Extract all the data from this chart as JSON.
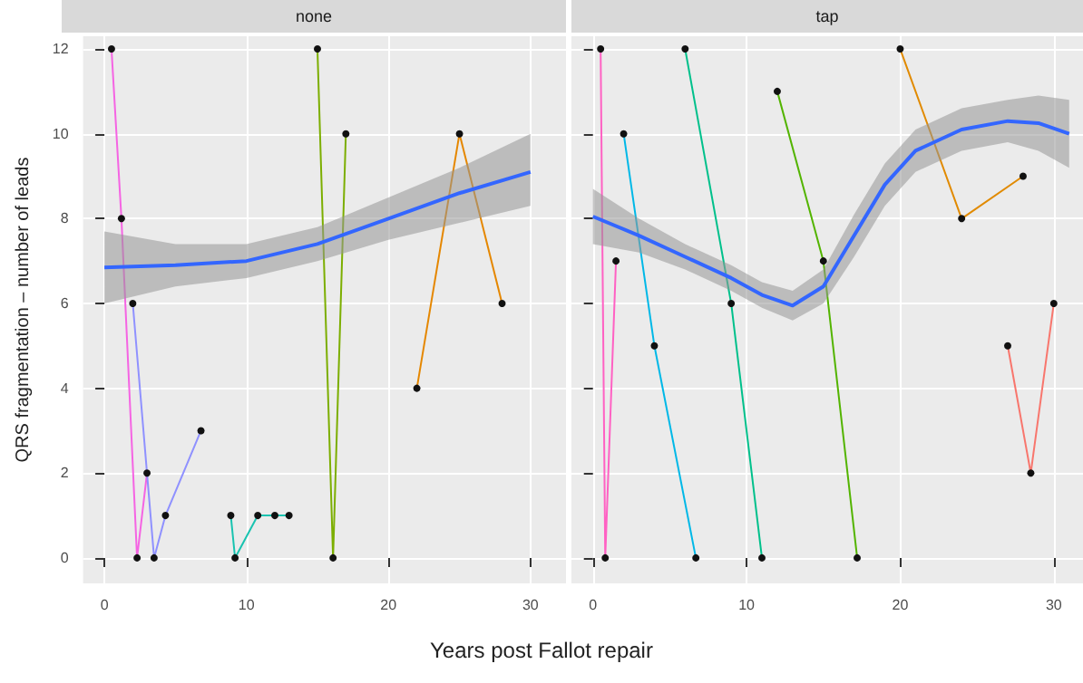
{
  "chart_data": [
    {
      "type": "line",
      "title": "none",
      "ylabel": "QRS fragmentation – number of leads",
      "xlabel": "Years post Fallot repair",
      "xlim": [
        -1.5,
        32.5
      ],
      "ylim": [
        -0.6,
        12.3
      ],
      "xticks": [
        0,
        10,
        20,
        30
      ],
      "yticks": [
        0,
        2,
        4,
        6,
        8,
        10,
        12
      ],
      "grid": true,
      "marker": "circle",
      "line_style": "solid",
      "series": [
        {
          "color": "#f564e3",
          "x": [
            0.5,
            1.2,
            2.3,
            3.0
          ],
          "values": [
            12,
            8,
            0,
            2
          ]
        },
        {
          "color": "#8f91ff",
          "x": [
            2.0,
            3.5,
            4.3,
            6.8
          ],
          "values": [
            6,
            0,
            1,
            3
          ]
        },
        {
          "color": "#19c3b0",
          "x": [
            8.9,
            9.2,
            10.8,
            12.0,
            13.0
          ],
          "values": [
            1,
            0,
            1,
            1,
            1
          ]
        },
        {
          "color": "#7cae00",
          "x": [
            15.0,
            16.1,
            17.0
          ],
          "values": [
            12,
            0,
            10
          ]
        },
        {
          "color": "#e58700",
          "x": [
            22.0,
            25.0,
            28.0
          ],
          "values": [
            4,
            10,
            6
          ]
        },
        {
          "color": "#3366ff",
          "marker": "none",
          "x": [
            0,
            5,
            10,
            15,
            20,
            25,
            30
          ],
          "values": [
            6.85,
            6.9,
            7.0,
            7.4,
            8.0,
            8.6,
            9.1
          ],
          "lower": [
            6.0,
            6.4,
            6.6,
            7.0,
            7.5,
            7.9,
            8.3
          ],
          "upper": [
            7.7,
            7.4,
            7.4,
            7.8,
            8.5,
            9.2,
            10.0
          ]
        }
      ]
    },
    {
      "type": "line",
      "title": "tap",
      "xlim": [
        -1.4,
        31.9
      ],
      "ylim": [
        -0.6,
        12.3
      ],
      "xticks": [
        0,
        10,
        20,
        30
      ],
      "yticks": [
        0,
        2,
        4,
        6,
        8,
        10,
        12
      ],
      "tick_labels": "x",
      "grid": true,
      "marker": "circle",
      "line_style": "solid",
      "series": [
        {
          "color": "#ff61c3",
          "x": [
            0.5,
            0.8,
            1.5
          ],
          "values": [
            12,
            0,
            7
          ]
        },
        {
          "color": "#00b8e7",
          "x": [
            2.0,
            4.0,
            6.7
          ],
          "values": [
            10,
            5,
            0
          ]
        },
        {
          "color": "#00c08b",
          "x": [
            6.0,
            9.0,
            11.0
          ],
          "values": [
            12,
            6,
            0
          ]
        },
        {
          "color": "#53b400",
          "x": [
            12.0,
            15.0,
            17.2
          ],
          "values": [
            11,
            7,
            0
          ]
        },
        {
          "color": "#e18a00",
          "x": [
            20.0,
            24.0,
            28.0
          ],
          "values": [
            12,
            8,
            9
          ]
        },
        {
          "color": "#f8766d",
          "x": [
            27.0,
            28.5,
            30.0
          ],
          "values": [
            5,
            2,
            6
          ]
        },
        {
          "color": "#3366ff",
          "marker": "none",
          "x": [
            0,
            3,
            6,
            9,
            11,
            13,
            15,
            17,
            19,
            21,
            24,
            27,
            29,
            31
          ],
          "values": [
            8.05,
            7.6,
            7.1,
            6.6,
            6.2,
            5.95,
            6.4,
            7.6,
            8.8,
            9.6,
            10.1,
            10.3,
            10.25,
            10.0
          ],
          "lower": [
            7.4,
            7.2,
            6.8,
            6.3,
            5.9,
            5.6,
            6.0,
            7.1,
            8.3,
            9.1,
            9.6,
            9.8,
            9.6,
            9.2
          ],
          "upper": [
            8.7,
            8.0,
            7.4,
            6.9,
            6.5,
            6.3,
            6.8,
            8.1,
            9.3,
            10.1,
            10.6,
            10.8,
            10.9,
            10.8
          ]
        }
      ]
    }
  ]
}
